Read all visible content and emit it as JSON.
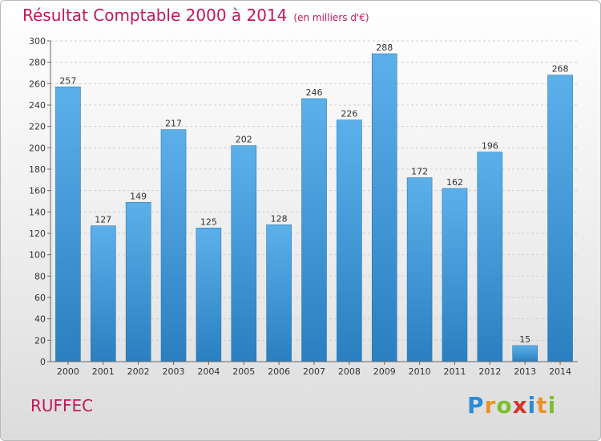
{
  "header": {
    "title": "Résultat Comptable 2000 à 2014",
    "subtitle": "(en milliers d'€)"
  },
  "footer": {
    "city": "RUFFEC",
    "brand_letters": [
      "P",
      "r",
      "o",
      "x",
      "i",
      "t",
      "i"
    ],
    "brand_colors": [
      "#2a8cd8",
      "#e8942a",
      "#7cbf2a",
      "#d8342a",
      "#2a8cd8",
      "#e8942a",
      "#7cbf2a"
    ]
  },
  "chart_data": {
    "type": "bar",
    "title": "Résultat Comptable 2000 à 2014",
    "subtitle": "(en milliers d'€)",
    "categories": [
      "2000",
      "2001",
      "2002",
      "2003",
      "2004",
      "2005",
      "2006",
      "2007",
      "2008",
      "2009",
      "2010",
      "2011",
      "2012",
      "2013",
      "2014"
    ],
    "values": [
      257,
      127,
      149,
      217,
      125,
      202,
      128,
      246,
      226,
      288,
      172,
      162,
      196,
      15,
      268
    ],
    "xlabel": "",
    "ylabel": "",
    "ylim": [
      0,
      300
    ],
    "yticks": [
      0,
      20,
      40,
      60,
      80,
      100,
      120,
      140,
      160,
      180,
      200,
      220,
      240,
      260,
      280,
      300
    ],
    "grid": true,
    "bar_color": "#3f9ee0",
    "bar_color_light": "#5cb0ea",
    "bar_color_dark": "#2a7fc0"
  }
}
